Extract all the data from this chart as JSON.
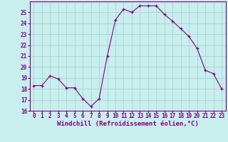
{
  "x": [
    0,
    1,
    2,
    3,
    4,
    5,
    6,
    7,
    8,
    9,
    10,
    11,
    12,
    13,
    14,
    15,
    16,
    17,
    18,
    19,
    20,
    21,
    22,
    23
  ],
  "y": [
    18.3,
    18.3,
    19.2,
    18.9,
    18.1,
    18.1,
    17.1,
    16.4,
    17.1,
    21.0,
    24.3,
    25.3,
    25.0,
    25.6,
    25.6,
    25.6,
    24.8,
    24.2,
    23.5,
    22.8,
    21.7,
    19.7,
    19.4,
    18.0
  ],
  "line_color": "#800080",
  "marker": "+",
  "marker_color": "#800080",
  "bg_color": "#c8eeee",
  "grid_color": "#aad4d4",
  "xlabel": "Windchill (Refroidissement éolien,°C)",
  "xlabel_color": "#800080",
  "tick_color": "#800080",
  "ylim": [
    16,
    26
  ],
  "xlim": [
    -0.5,
    23.5
  ],
  "yticks": [
    16,
    17,
    18,
    19,
    20,
    21,
    22,
    23,
    24,
    25
  ],
  "xticks": [
    0,
    1,
    2,
    3,
    4,
    5,
    6,
    7,
    8,
    9,
    10,
    11,
    12,
    13,
    14,
    15,
    16,
    17,
    18,
    19,
    20,
    21,
    22,
    23
  ],
  "tick_fontsize": 5.5,
  "xlabel_fontsize": 6.5,
  "linewidth": 0.8,
  "markersize": 3.0
}
